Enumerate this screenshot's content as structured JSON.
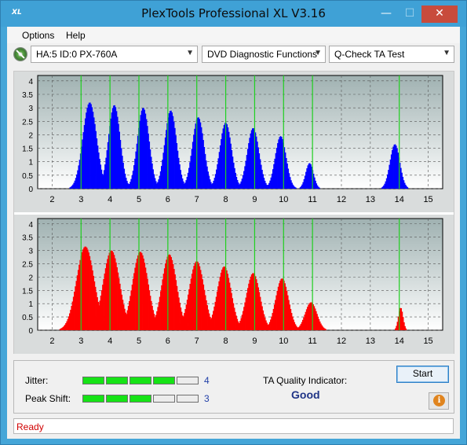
{
  "window": {
    "title": "PlexTools Professional XL V3.16",
    "logo_text": "XL"
  },
  "menu": {
    "items": [
      "Options",
      "Help"
    ]
  },
  "toolbar": {
    "drive": "HA:5 ID:0  PX-760A",
    "function": "DVD Diagnostic Functions",
    "test": "Q-Check TA Test"
  },
  "chart_data": [
    {
      "type": "bar",
      "color": "#0000ff",
      "x_ticks": [
        "2",
        "3",
        "4",
        "5",
        "6",
        "7",
        "8",
        "9",
        "10",
        "11",
        "12",
        "13",
        "14",
        "15"
      ],
      "y_ticks": [
        "0",
        "0.5",
        "1",
        "1.5",
        "2",
        "2.5",
        "3",
        "3.5",
        "4"
      ],
      "xlim": [
        1.5,
        15.5
      ],
      "ylim": [
        0,
        4.2
      ],
      "green_lines": [
        3,
        4,
        5,
        6,
        7,
        8,
        9,
        10,
        11,
        14
      ],
      "peaks": [
        {
          "center": 3.3,
          "height": 3.2,
          "width": 0.35
        },
        {
          "center": 4.15,
          "height": 3.1,
          "width": 0.3
        },
        {
          "center": 5.15,
          "height": 3.0,
          "width": 0.3
        },
        {
          "center": 6.1,
          "height": 2.9,
          "width": 0.3
        },
        {
          "center": 7.05,
          "height": 2.65,
          "width": 0.3
        },
        {
          "center": 8.0,
          "height": 2.45,
          "width": 0.3
        },
        {
          "center": 8.95,
          "height": 2.25,
          "width": 0.3
        },
        {
          "center": 9.9,
          "height": 1.95,
          "width": 0.28
        },
        {
          "center": 10.9,
          "height": 0.95,
          "width": 0.2
        },
        {
          "center": 13.85,
          "height": 1.65,
          "width": 0.25
        }
      ]
    },
    {
      "type": "bar",
      "color": "#ff0000",
      "x_ticks": [
        "2",
        "3",
        "4",
        "5",
        "6",
        "7",
        "8",
        "9",
        "10",
        "11",
        "12",
        "13",
        "14",
        "15"
      ],
      "y_ticks": [
        "0",
        "0.5",
        "1",
        "1.5",
        "2",
        "2.5",
        "3",
        "3.5",
        "4"
      ],
      "xlim": [
        1.5,
        15.5
      ],
      "ylim": [
        0,
        4.2
      ],
      "green_lines": [
        3,
        4,
        5,
        6,
        7,
        8,
        9,
        10,
        11,
        14
      ],
      "peaks": [
        {
          "center": 3.15,
          "height": 3.15,
          "width": 0.45
        },
        {
          "center": 4.05,
          "height": 3.0,
          "width": 0.42
        },
        {
          "center": 5.05,
          "height": 2.95,
          "width": 0.4
        },
        {
          "center": 6.05,
          "height": 2.85,
          "width": 0.38
        },
        {
          "center": 7.0,
          "height": 2.6,
          "width": 0.38
        },
        {
          "center": 7.95,
          "height": 2.4,
          "width": 0.36
        },
        {
          "center": 8.95,
          "height": 2.15,
          "width": 0.35
        },
        {
          "center": 9.95,
          "height": 1.95,
          "width": 0.33
        },
        {
          "center": 10.95,
          "height": 1.05,
          "width": 0.3
        },
        {
          "center": 14.05,
          "height": 0.85,
          "width": 0.12
        }
      ]
    }
  ],
  "status": {
    "jitter_label": "Jitter:",
    "jitter_value": "4",
    "jitter_level": 4,
    "peak_shift_label": "Peak Shift:",
    "peak_shift_value": "3",
    "peak_shift_level": 3,
    "meter_max": 5,
    "ta_label": "TA Quality Indicator:",
    "ta_value": "Good",
    "start_label": "Start",
    "info_glyph": "i"
  },
  "statusbar": {
    "text": "Ready"
  }
}
